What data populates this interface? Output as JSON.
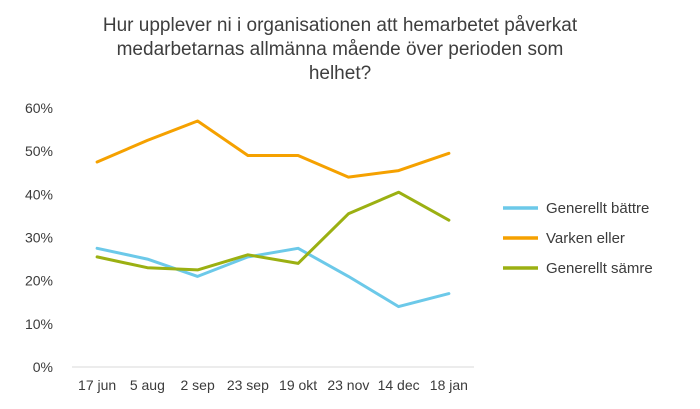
{
  "chart_data": {
    "type": "line",
    "title_lines": [
      "Hur upplever ni i organisationen att hemarbetet påverkat",
      "medarbetarnas allmänna mående över perioden som",
      "helhet?"
    ],
    "categories": [
      "17 jun",
      "5 aug",
      "2 sep",
      "23 sep",
      "19 okt",
      "23 nov",
      "14 dec",
      "18 jan"
    ],
    "ylim": [
      0,
      60
    ],
    "yticks": [
      0,
      10,
      20,
      30,
      40,
      50,
      60
    ],
    "ytick_labels": [
      "0%",
      "10%",
      "20%",
      "30%",
      "40%",
      "50%",
      "60%"
    ],
    "grid": false,
    "legend_position": "right",
    "series": [
      {
        "name": "Generellt bättre",
        "color": "#6cc9e9",
        "values": [
          27.5,
          25,
          21,
          25.5,
          27.5,
          21,
          14,
          17
        ]
      },
      {
        "name": "Varken eller",
        "color": "#f5a100",
        "values": [
          47.5,
          52.5,
          57,
          49,
          49,
          44,
          45.5,
          49.5
        ]
      },
      {
        "name": "Generellt sämre",
        "color": "#9bb012",
        "values": [
          25.5,
          23,
          22.5,
          26,
          24,
          35.5,
          40.5,
          34
        ]
      }
    ]
  }
}
